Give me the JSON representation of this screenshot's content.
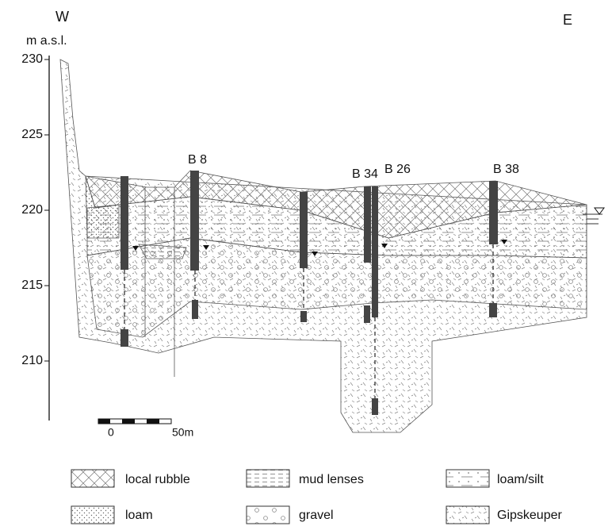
{
  "directions": {
    "west": "W",
    "east": "E"
  },
  "axis": {
    "label": "m a.s.l.",
    "ticks": [
      230,
      225,
      220,
      215,
      210
    ]
  },
  "boreholes": [
    {
      "label": "B 8"
    },
    {
      "label": "B 34"
    },
    {
      "label": "B 26"
    },
    {
      "label": "B 38"
    }
  ],
  "scale_bar": {
    "start": "0",
    "end": "50m"
  },
  "legend": [
    {
      "label": "local rubble"
    },
    {
      "label": "mud lenses"
    },
    {
      "label": "loam/silt"
    },
    {
      "label": "loam"
    },
    {
      "label": "gravel"
    },
    {
      "label": "Gipskeuper"
    }
  ]
}
